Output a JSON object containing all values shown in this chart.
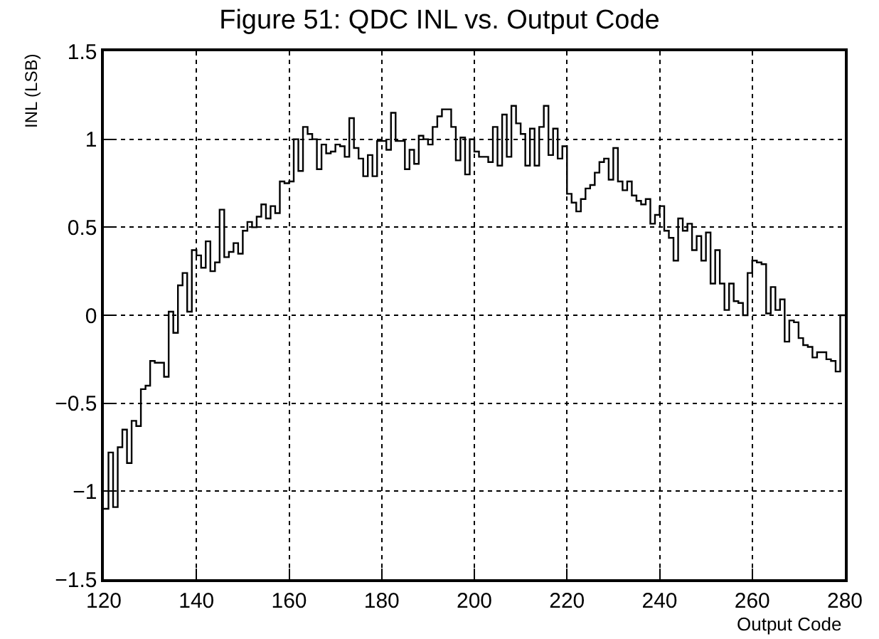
{
  "chart_data": {
    "type": "histogram",
    "title": "Figure 51: QDC INL vs. Output Code",
    "xlabel": "Output Code",
    "ylabel": "INL (LSB)",
    "bins": [
      120,
      121,
      122,
      123,
      124,
      125,
      126,
      127,
      128,
      129,
      130,
      131,
      132,
      133,
      134,
      135,
      136,
      137,
      138,
      139,
      140,
      141,
      142,
      143,
      144,
      145,
      146,
      147,
      148,
      149,
      150,
      151,
      152,
      153,
      154,
      155,
      156,
      157,
      158,
      159,
      160,
      161,
      162,
      163,
      164,
      165,
      166,
      167,
      168,
      169,
      170,
      171,
      172,
      173,
      174,
      175,
      176,
      177,
      178,
      179,
      180,
      181,
      182,
      183,
      184,
      185,
      186,
      187,
      188,
      189,
      190,
      191,
      192,
      193,
      194,
      195,
      196,
      197,
      198,
      199,
      200,
      201,
      202,
      203,
      204,
      205,
      206,
      207,
      208,
      209,
      210,
      211,
      212,
      213,
      214,
      215,
      216,
      217,
      218,
      219,
      220,
      221,
      222,
      223,
      224,
      225,
      226,
      227,
      228,
      229,
      230,
      231,
      232,
      233,
      234,
      235,
      236,
      237,
      238,
      239,
      240,
      241,
      242,
      243,
      244,
      245,
      246,
      247,
      248,
      249,
      250,
      251,
      252,
      253,
      254,
      255,
      256,
      257,
      258,
      259,
      260,
      261,
      262,
      263,
      264,
      265,
      266,
      267,
      268,
      269,
      270,
      271,
      272,
      273,
      274,
      275,
      276,
      277,
      278,
      279,
      280
    ],
    "values": [
      -1.1,
      -0.78,
      -1.09,
      -0.75,
      -0.65,
      -0.84,
      -0.6,
      -0.63,
      -0.42,
      -0.4,
      -0.26,
      -0.27,
      -0.27,
      -0.35,
      0.02,
      -0.1,
      0.17,
      0.24,
      0.02,
      0.37,
      0.34,
      0.27,
      0.42,
      0.25,
      0.3,
      0.6,
      0.33,
      0.36,
      0.41,
      0.35,
      0.48,
      0.53,
      0.5,
      0.56,
      0.63,
      0.55,
      0.62,
      0.58,
      0.76,
      0.75,
      0.76,
      1.0,
      0.82,
      1.07,
      1.03,
      1.0,
      0.83,
      0.97,
      0.92,
      0.93,
      0.97,
      0.96,
      0.9,
      1.12,
      0.95,
      0.89,
      0.79,
      0.91,
      0.79,
      0.99,
      0.99,
      0.94,
      1.15,
      0.99,
      0.99,
      0.83,
      0.94,
      0.86,
      1.02,
      1.0,
      0.97,
      1.07,
      1.13,
      1.17,
      1.17,
      1.07,
      0.88,
      1.01,
      0.8,
      1.0,
      0.93,
      0.9,
      0.9,
      0.87,
      1.07,
      0.85,
      1.14,
      0.9,
      1.19,
      1.09,
      1.03,
      0.85,
      1.06,
      0.85,
      1.07,
      1.19,
      0.91,
      1.06,
      0.89,
      0.96,
      0.69,
      0.64,
      0.59,
      0.66,
      0.72,
      0.74,
      0.81,
      0.87,
      0.89,
      0.77,
      0.95,
      0.76,
      0.71,
      0.76,
      0.68,
      0.65,
      0.63,
      0.66,
      0.52,
      0.57,
      0.62,
      0.48,
      0.44,
      0.31,
      0.55,
      0.48,
      0.52,
      0.37,
      0.45,
      0.31,
      0.47,
      0.18,
      0.37,
      0.18,
      0.03,
      0.18,
      0.08,
      0.07,
      0.0,
      0.24,
      0.31,
      0.3,
      0.29,
      0.01,
      0.16,
      0.03,
      0.09,
      -0.15,
      -0.03,
      -0.04,
      -0.13,
      -0.17,
      -0.18,
      -0.24,
      -0.21,
      -0.21,
      -0.25,
      -0.26,
      -0.32,
      0
    ],
    "color": "#000000",
    "xlim": [
      120,
      280
    ],
    "xticks": [
      120,
      140,
      160,
      180,
      200,
      220,
      240,
      260,
      280
    ],
    "ylim": [
      -1.5,
      1.5
    ],
    "yticks": [
      {
        "value": -1.5,
        "label": "−1.5"
      },
      {
        "value": -1,
        "label": "−1"
      },
      {
        "value": -0.5,
        "label": "−0.5"
      },
      0,
      0.5,
      1,
      1.5
    ],
    "grid": true
  }
}
